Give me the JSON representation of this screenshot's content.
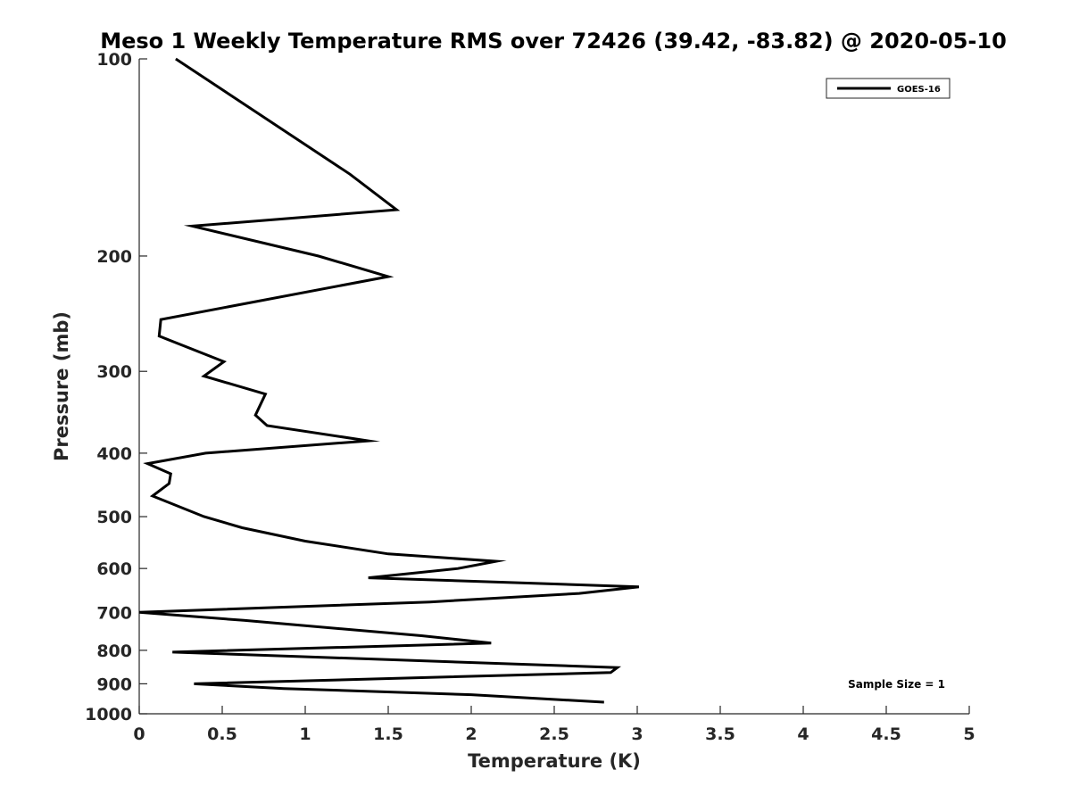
{
  "chart_data": {
    "type": "line",
    "title": "Meso 1 Weekly Temperature RMS over 72426 (39.42, -83.82) @ 2020-05-10",
    "xlabel": "Temperature (K)",
    "ylabel": "Pressure (mb)",
    "xlim": [
      0,
      5
    ],
    "ylim": [
      100,
      1000
    ],
    "y_scale": "log",
    "y_reversed": true,
    "grid": false,
    "legend_position": "top-right",
    "x_ticks": [
      0,
      0.5,
      1,
      1.5,
      2,
      2.5,
      3,
      3.5,
      4,
      4.5,
      5
    ],
    "x_tick_labels": [
      "0",
      "0.5",
      "1",
      "1.5",
      "2",
      "2.5",
      "3",
      "3.5",
      "4",
      "4.5",
      "5"
    ],
    "y_ticks": [
      100,
      200,
      300,
      400,
      500,
      600,
      700,
      800,
      900,
      1000
    ],
    "y_tick_labels": [
      "100",
      "200",
      "300",
      "400",
      "500",
      "600",
      "700",
      "800",
      "900",
      "1000"
    ],
    "series": [
      {
        "name": "GOES-16",
        "color": "#000000",
        "points": [
          [
            0.22,
            100
          ],
          [
            1.27,
            150
          ],
          [
            1.55,
            170
          ],
          [
            0.32,
            180
          ],
          [
            1.08,
            200
          ],
          [
            1.5,
            215
          ],
          [
            0.13,
            250
          ],
          [
            0.12,
            265
          ],
          [
            0.51,
            290
          ],
          [
            0.39,
            305
          ],
          [
            0.76,
            325
          ],
          [
            0.7,
            350
          ],
          [
            0.77,
            363
          ],
          [
            1.38,
            383
          ],
          [
            0.4,
            400
          ],
          [
            0.05,
            415
          ],
          [
            0.19,
            430
          ],
          [
            0.18,
            445
          ],
          [
            0.08,
            465
          ],
          [
            0.39,
            500
          ],
          [
            0.62,
            520
          ],
          [
            1.0,
            545
          ],
          [
            1.5,
            570
          ],
          [
            2.15,
            585
          ],
          [
            1.92,
            600
          ],
          [
            1.38,
            620
          ],
          [
            3.01,
            640
          ],
          [
            2.65,
            655
          ],
          [
            1.75,
            675
          ],
          [
            0.0,
            700
          ],
          [
            0.63,
            720
          ],
          [
            1.7,
            760
          ],
          [
            2.12,
            780
          ],
          [
            0.2,
            805
          ],
          [
            2.88,
            850
          ],
          [
            2.84,
            865
          ],
          [
            0.33,
            900
          ],
          [
            0.87,
            915
          ],
          [
            2.0,
            935
          ],
          [
            2.8,
            960
          ]
        ]
      }
    ],
    "annotation": "Sample Size = 1"
  }
}
